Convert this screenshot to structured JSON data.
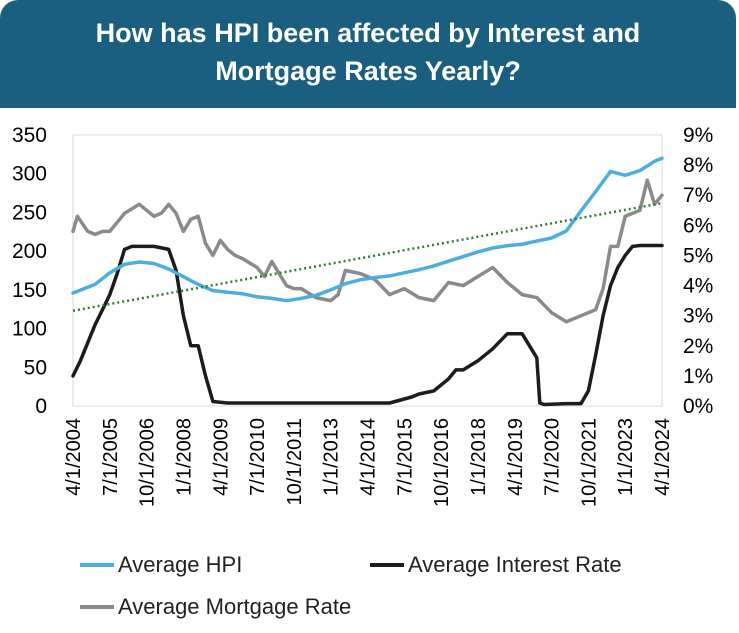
{
  "chart_data": {
    "type": "line",
    "title_lines": [
      "How has HPI been affected by Interest and",
      "Mortgage Rates Yearly?"
    ],
    "x_tick_labels": [
      "4/1/2004",
      "7/1/2005",
      "10/1/2006",
      "1/1/2008",
      "4/1/2009",
      "7/1/2010",
      "10/1/2011",
      "1/1/2013",
      "4/1/2014",
      "7/1/2015",
      "10/1/2016",
      "1/1/2018",
      "4/1/2019",
      "7/1/2020",
      "10/1/2021",
      "1/1/2023",
      "4/1/2024"
    ],
    "x_range": [
      2004.25,
      2024.25
    ],
    "y_left": {
      "ticks": [
        "0",
        "50",
        "100",
        "150",
        "200",
        "250",
        "300",
        "350"
      ],
      "range": [
        0,
        350
      ]
    },
    "y_right": {
      "ticks": [
        "0%",
        "1%",
        "2%",
        "3%",
        "4%",
        "5%",
        "6%",
        "7%",
        "8%",
        "9%"
      ],
      "range": [
        0,
        9
      ]
    },
    "grid": false,
    "legend_position": "bottom",
    "series": [
      {
        "name": "Average HPI",
        "axis": "left",
        "color": "#4aaede",
        "x": [
          2004.25,
          2005.0,
          2005.5,
          2006.0,
          2006.5,
          2007.0,
          2007.5,
          2008.0,
          2008.5,
          2009.0,
          2009.5,
          2010.0,
          2010.5,
          2011.0,
          2011.5,
          2012.0,
          2012.5,
          2013.0,
          2013.5,
          2014.0,
          2014.5,
          2015.0,
          2015.5,
          2016.0,
          2016.5,
          2017.0,
          2017.5,
          2018.0,
          2018.5,
          2019.0,
          2019.5,
          2020.0,
          2020.5,
          2021.0,
          2021.5,
          2022.0,
          2022.5,
          2023.0,
          2023.5,
          2024.0,
          2024.25
        ],
        "values": [
          146,
          157,
          172,
          183,
          186,
          184,
          177,
          167,
          157,
          149,
          147,
          145,
          141,
          139,
          136,
          139,
          143,
          150,
          158,
          163,
          166,
          168,
          172,
          176,
          181,
          187,
          193,
          199,
          204,
          207,
          209,
          213,
          217,
          226,
          252,
          277,
          303,
          298,
          304,
          316,
          320
        ]
      },
      {
        "name": "Average Interest Rate",
        "axis": "right",
        "color": "#1c1c1c",
        "x": [
          2004.25,
          2004.5,
          2004.75,
          2005.0,
          2005.25,
          2005.5,
          2005.75,
          2006.0,
          2006.25,
          2006.5,
          2007.0,
          2007.5,
          2007.75,
          2008.0,
          2008.25,
          2008.5,
          2008.75,
          2009.0,
          2009.5,
          2010.0,
          2011.0,
          2012.0,
          2013.0,
          2014.0,
          2015.0,
          2015.75,
          2016.0,
          2016.5,
          2017.0,
          2017.25,
          2017.5,
          2018.0,
          2018.25,
          2018.5,
          2019.0,
          2019.25,
          2019.5,
          2019.75,
          2020.0,
          2020.1,
          2020.25,
          2021.0,
          2021.5,
          2021.75,
          2022.0,
          2022.25,
          2022.5,
          2022.75,
          2023.0,
          2023.25,
          2023.5,
          2024.0,
          2024.25
        ],
        "values": [
          1.0,
          1.5,
          2.1,
          2.7,
          3.2,
          3.7,
          4.4,
          5.2,
          5.3,
          5.3,
          5.3,
          5.2,
          4.5,
          3.0,
          2.0,
          2.0,
          1.0,
          0.15,
          0.1,
          0.1,
          0.1,
          0.1,
          0.1,
          0.1,
          0.1,
          0.3,
          0.4,
          0.5,
          0.9,
          1.2,
          1.2,
          1.5,
          1.7,
          1.9,
          2.4,
          2.4,
          2.4,
          2.0,
          1.6,
          0.1,
          0.05,
          0.08,
          0.08,
          0.5,
          1.7,
          3.0,
          4.0,
          4.6,
          5.0,
          5.3,
          5.33,
          5.33,
          5.33
        ]
      },
      {
        "name": "Average Mortgage Rate",
        "axis": "right",
        "color": "#8a8a8a",
        "x": [
          2004.25,
          2004.4,
          2004.75,
          2005.0,
          2005.25,
          2005.5,
          2005.75,
          2006.0,
          2006.5,
          2007.0,
          2007.25,
          2007.5,
          2007.75,
          2008.0,
          2008.25,
          2008.5,
          2008.75,
          2009.0,
          2009.25,
          2009.5,
          2009.75,
          2010.0,
          2010.5,
          2010.75,
          2011.0,
          2011.25,
          2011.5,
          2011.75,
          2012.0,
          2012.5,
          2013.0,
          2013.25,
          2013.5,
          2014.0,
          2014.5,
          2015.0,
          2015.5,
          2016.0,
          2016.5,
          2017.0,
          2017.5,
          2018.0,
          2018.5,
          2019.0,
          2019.5,
          2020.0,
          2020.5,
          2021.0,
          2021.5,
          2022.0,
          2022.25,
          2022.5,
          2022.75,
          2023.0,
          2023.5,
          2023.75,
          2024.0,
          2024.25
        ],
        "values": [
          5.8,
          6.3,
          5.8,
          5.7,
          5.8,
          5.8,
          6.1,
          6.4,
          6.7,
          6.3,
          6.4,
          6.7,
          6.4,
          5.8,
          6.2,
          6.3,
          5.4,
          5.0,
          5.5,
          5.2,
          5.0,
          4.9,
          4.6,
          4.3,
          4.8,
          4.4,
          4.0,
          3.9,
          3.9,
          3.6,
          3.5,
          3.7,
          4.5,
          4.4,
          4.2,
          3.7,
          3.9,
          3.6,
          3.5,
          4.1,
          4.0,
          4.3,
          4.6,
          4.1,
          3.7,
          3.6,
          3.1,
          2.8,
          3.0,
          3.2,
          3.9,
          5.3,
          5.3,
          6.3,
          6.5,
          7.5,
          6.7,
          7.0
        ]
      }
    ],
    "trendline": {
      "of": "Average HPI",
      "type": "linear",
      "style": "dotted",
      "color": "#2e7d32",
      "values": [
        123,
        262
      ]
    }
  }
}
